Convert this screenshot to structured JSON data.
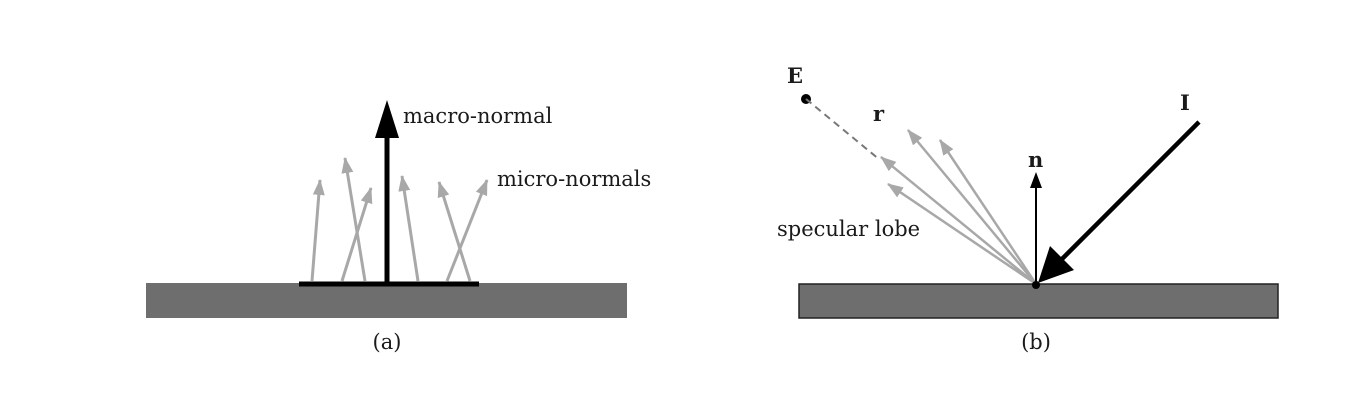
{
  "panel_a": {
    "caption": "(a)",
    "macro_normal_label": "macro-normal",
    "micro_normals_label": "micro-normals"
  },
  "panel_b": {
    "caption": "(b)",
    "eye_label": "E",
    "reflection_label": "r",
    "normal_label": "n",
    "incident_label": "I",
    "lobe_label": "specular lobe"
  },
  "colors": {
    "surface": "#6e6e6e",
    "micro_arrow": "#a8a8a8",
    "ink": "#000000"
  }
}
